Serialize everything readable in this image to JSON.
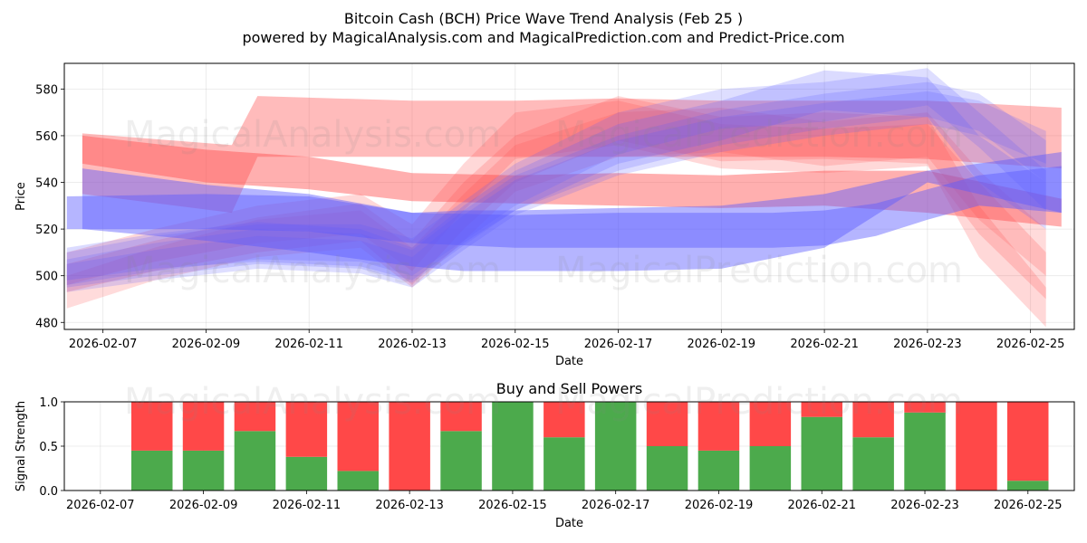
{
  "title": "Bitcoin Cash (BCH) Price Wave Trend Analysis (Feb 25 )",
  "subtitle": "powered by MagicalAnalysis.com and MagicalPrediction.com and Predict-Price.com",
  "watermarks": [
    "MagicalAnalysis.com",
    "MagicalPrediction.com"
  ],
  "colors": {
    "buy": "#4caa4c",
    "sell": "#ff4848",
    "red_band": "#ff4d4d",
    "blue_band": "#5a5aff"
  },
  "chart_data": [
    {
      "type": "area",
      "title": "",
      "xlabel": "Date",
      "ylabel": "Price",
      "ylim": [
        477,
        591
      ],
      "yticks": [
        480,
        500,
        520,
        540,
        560,
        580
      ],
      "x_tick_labels": [
        "2026-02-07",
        "2026-02-09",
        "2026-02-11",
        "2026-02-13",
        "2026-02-15",
        "2026-02-17",
        "2026-02-19",
        "2026-02-21",
        "2026-02-23",
        "2026-02-25"
      ],
      "x_tick_days": [
        7,
        9,
        11,
        13,
        15,
        17,
        19,
        21,
        23,
        25
      ],
      "xlim_days": [
        6.25,
        25.85
      ],
      "grid": true,
      "series": [
        {
          "name": "red-band-1",
          "color": "red",
          "opacity": 0.38,
          "x": [
            6.6,
            9.5,
            10.0,
            13,
            15,
            17,
            19,
            21,
            23,
            25.6
          ],
          "upper": [
            561,
            556,
            577,
            575,
            575,
            576,
            575,
            575,
            575,
            572
          ],
          "lower": [
            535,
            527,
            551,
            551,
            551,
            551,
            551,
            551,
            550,
            546
          ]
        },
        {
          "name": "red-band-2",
          "color": "red",
          "opacity": 0.45,
          "x": [
            6.6,
            9,
            11,
            13,
            15,
            17,
            19,
            21,
            23,
            25.6
          ],
          "upper": [
            560,
            554,
            551,
            544,
            543,
            544,
            543,
            545,
            545,
            533
          ],
          "lower": [
            548,
            540,
            537,
            532,
            531,
            530,
            529,
            530,
            527,
            521
          ]
        },
        {
          "name": "red-band-3",
          "color": "red",
          "opacity": 0.22,
          "x": [
            6.3,
            8,
            10,
            12,
            13,
            14,
            15,
            17,
            19,
            21,
            23,
            24,
            25.3
          ],
          "upper": [
            505,
            515,
            525,
            531,
            515,
            540,
            560,
            577,
            568,
            570,
            568,
            530,
            495
          ],
          "lower": [
            493,
            502,
            510,
            515,
            496,
            520,
            540,
            558,
            549,
            550,
            548,
            508,
            478
          ]
        },
        {
          "name": "red-band-4",
          "color": "red",
          "opacity": 0.22,
          "x": [
            6.3,
            8,
            10,
            12,
            13,
            14,
            15,
            17,
            19,
            21,
            23,
            24,
            25.3
          ],
          "upper": [
            510,
            520,
            530,
            535,
            522,
            548,
            570,
            575,
            565,
            563,
            565,
            540,
            510
          ],
          "lower": [
            496,
            506,
            514,
            518,
            502,
            528,
            550,
            556,
            546,
            544,
            547,
            518,
            490
          ]
        },
        {
          "name": "red-band-5",
          "color": "red",
          "opacity": 0.2,
          "x": [
            6.3,
            8,
            10,
            12,
            13,
            14,
            15,
            17,
            19,
            21,
            23,
            24,
            25.3
          ],
          "upper": [
            500,
            512,
            524,
            528,
            512,
            535,
            556,
            570,
            572,
            566,
            570,
            545,
            520
          ],
          "lower": [
            486,
            498,
            508,
            512,
            495,
            515,
            536,
            551,
            553,
            547,
            551,
            524,
            500
          ]
        },
        {
          "name": "blue-band-1",
          "color": "blue",
          "opacity": 0.45,
          "x": [
            6.6,
            9,
            11,
            13,
            14,
            15,
            17,
            19,
            21,
            23,
            25.6
          ],
          "upper": [
            546,
            539,
            535,
            527,
            528,
            528,
            529,
            530,
            535,
            545,
            553
          ],
          "lower": [
            520,
            515,
            510,
            504,
            502,
            502,
            502,
            503,
            512,
            540,
            527
          ]
        },
        {
          "name": "blue-band-2",
          "color": "blue",
          "opacity": 0.45,
          "x": [
            6.3,
            9,
            11,
            13,
            15,
            17,
            19,
            20,
            21,
            22,
            23,
            24,
            25.6
          ],
          "upper": [
            534,
            535,
            534,
            527,
            526,
            527,
            527,
            527,
            528,
            531,
            537,
            543,
            547
          ],
          "lower": [
            520,
            520,
            519,
            514,
            512,
            512,
            512,
            512,
            513,
            517,
            524,
            530,
            527
          ]
        },
        {
          "name": "blue-band-3",
          "color": "blue",
          "opacity": 0.2,
          "x": [
            6.3,
            8,
            10,
            12,
            13,
            14,
            15,
            17,
            19,
            21,
            23,
            24,
            25.3
          ],
          "upper": [
            510,
            517,
            522,
            522,
            516,
            532,
            548,
            570,
            580,
            583,
            589,
            570,
            545
          ],
          "lower": [
            496,
            502,
            507,
            506,
            500,
            515,
            530,
            552,
            563,
            566,
            573,
            555,
            528
          ]
        },
        {
          "name": "blue-band-4",
          "color": "blue",
          "opacity": 0.22,
          "x": [
            6.3,
            8,
            10,
            12,
            13,
            14,
            15,
            17,
            19,
            21,
            23,
            24,
            25.3
          ],
          "upper": [
            512,
            518,
            523,
            520,
            512,
            530,
            545,
            565,
            575,
            588,
            585,
            560,
            540
          ],
          "lower": [
            498,
            503,
            506,
            504,
            498,
            514,
            528,
            548,
            558,
            571,
            568,
            540,
            520
          ]
        },
        {
          "name": "blue-band-5",
          "color": "blue",
          "opacity": 0.2,
          "x": [
            6.3,
            8,
            10,
            12,
            13,
            14,
            15,
            17,
            19,
            21,
            23,
            24,
            25.3
          ],
          "upper": [
            505,
            511,
            517,
            515,
            508,
            526,
            541,
            558,
            568,
            574,
            579,
            575,
            562
          ],
          "lower": [
            493,
            498,
            503,
            501,
            495,
            511,
            526,
            543,
            553,
            560,
            565,
            560,
            548
          ]
        },
        {
          "name": "blue-band-6",
          "color": "blue",
          "opacity": 0.2,
          "x": [
            6.3,
            8,
            10,
            12,
            13,
            14,
            15,
            17,
            19,
            21,
            23,
            24,
            25.3
          ],
          "upper": [
            507,
            514,
            520,
            518,
            511,
            528,
            543,
            560,
            571,
            578,
            583,
            578,
            558
          ],
          "lower": [
            495,
            500,
            505,
            503,
            497,
            513,
            528,
            545,
            556,
            563,
            568,
            562,
            540
          ]
        }
      ]
    },
    {
      "type": "bar",
      "title": "Buy and Sell Powers",
      "xlabel": "Date",
      "ylabel": "Signal Strength",
      "ylim": [
        0,
        1
      ],
      "yticks": [
        0.0,
        0.5,
        1.0
      ],
      "ytick_labels": [
        "0.0",
        "0.5",
        "1.0"
      ],
      "x_tick_labels": [
        "2026-02-07",
        "2026-02-09",
        "2026-02-11",
        "2026-02-13",
        "2026-02-15",
        "2026-02-17",
        "2026-02-19",
        "2026-02-21",
        "2026-02-23",
        "2026-02-25"
      ],
      "x_tick_days": [
        7,
        9,
        11,
        13,
        15,
        17,
        19,
        21,
        23,
        25
      ],
      "xlim_days": [
        6.3,
        25.9
      ],
      "days": [
        8,
        9,
        10,
        11,
        12,
        13,
        14,
        15,
        16,
        17,
        18,
        19,
        20,
        21,
        22,
        23,
        24,
        25
      ],
      "series": [
        {
          "name": "Buy",
          "color": "buy",
          "values": [
            0.45,
            0.45,
            0.67,
            0.38,
            0.22,
            0.0,
            0.67,
            1.0,
            0.6,
            1.0,
            0.5,
            0.45,
            0.5,
            0.83,
            0.6,
            0.88,
            0.0,
            0.11
          ]
        },
        {
          "name": "Sell",
          "color": "sell",
          "values": [
            0.55,
            0.55,
            0.33,
            0.62,
            0.78,
            1.0,
            0.33,
            0.0,
            0.4,
            0.0,
            0.5,
            0.55,
            0.5,
            0.17,
            0.4,
            0.12,
            1.0,
            0.89
          ]
        }
      ]
    }
  ]
}
